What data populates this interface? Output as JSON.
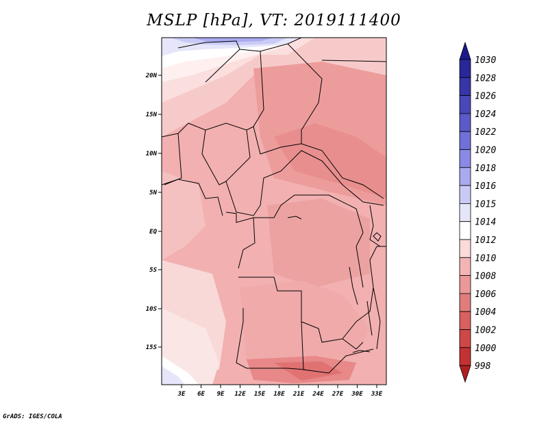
{
  "title": "MSLP [hPa], VT: 2019111400",
  "credit": "GrADS: IGES/COLA",
  "map": {
    "lat_ticks": [
      "20N",
      "15N",
      "10N",
      "5N",
      "EQ",
      "5S",
      "10S",
      "15S"
    ],
    "lon_ticks": [
      "3E",
      "6E",
      "9E",
      "12E",
      "15E",
      "18E",
      "21E",
      "24E",
      "27E",
      "30E",
      "33E"
    ],
    "field": "MSLP",
    "units": "hPa",
    "valid_time": "2019111400"
  },
  "colorbar": {
    "levels": [
      "1030",
      "1028",
      "1026",
      "1024",
      "1022",
      "1020",
      "1018",
      "1016",
      "1015",
      "1014",
      "1012",
      "1010",
      "1008",
      "1006",
      "1004",
      "1002",
      "1000",
      "998"
    ],
    "colors": [
      "#1a1a8c",
      "#28289a",
      "#3636a8",
      "#4848b8",
      "#5a5ac8",
      "#7070d8",
      "#8a8ae6",
      "#aaaaf0",
      "#cacaf6",
      "#e6e6fa",
      "#ffffff",
      "#fbdada",
      "#f2b4b4",
      "#eb9898",
      "#e07c7c",
      "#d86060",
      "#cf4848",
      "#c23232",
      "#b02020"
    ]
  }
}
